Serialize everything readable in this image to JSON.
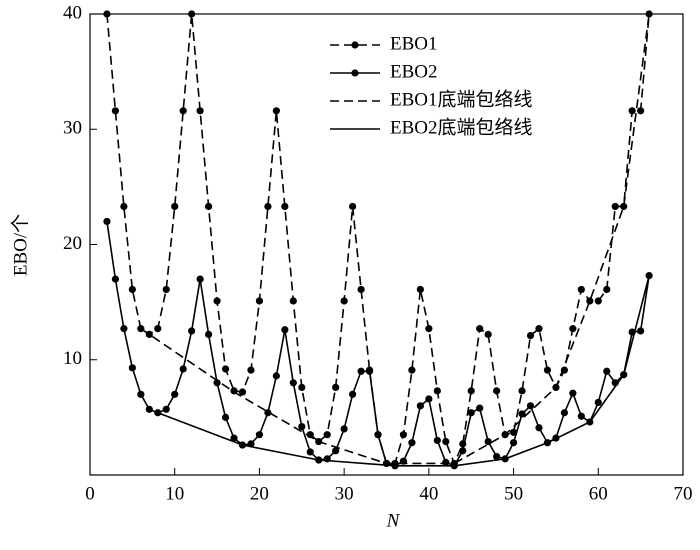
{
  "chart_data": {
    "type": "line",
    "x_label": "N",
    "y_label": "EBO/个",
    "x": [
      2,
      3,
      4,
      5,
      6,
      7,
      8,
      9,
      10,
      11,
      12,
      13,
      14,
      15,
      16,
      17,
      18,
      19,
      20,
      21,
      22,
      23,
      24,
      25,
      26,
      27,
      28,
      29,
      30,
      31,
      32,
      33,
      34,
      35,
      36,
      37,
      38,
      39,
      40,
      41,
      42,
      43,
      44,
      45,
      46,
      47,
      48,
      49,
      50,
      51,
      52,
      53,
      54,
      55,
      56,
      57,
      58,
      59,
      60,
      61,
      62,
      63,
      64,
      65,
      66
    ],
    "series": [
      {
        "name": "EBO1",
        "color": "#000000",
        "dashed": true,
        "markers": true,
        "values": [
          40,
          31.6,
          23.3,
          16.1,
          12.7,
          12.2,
          12.7,
          16.1,
          23.3,
          31.6,
          40,
          31.6,
          23.3,
          15.1,
          9.2,
          7.3,
          7.2,
          9.1,
          15.1,
          23.3,
          31.6,
          23.3,
          15.1,
          7.6,
          3.5,
          2.9,
          3.5,
          7.6,
          15.1,
          23.3,
          16.1,
          9.1,
          3.5,
          1,
          1,
          3.5,
          9.1,
          16.1,
          12.7,
          7.3,
          2.9,
          1,
          2.7,
          7.3,
          12.7,
          12.2,
          7.3,
          3.5,
          3.7,
          7.3,
          12.1,
          12.7,
          9.1,
          7.6,
          9.1,
          12.7,
          16.1,
          15.1,
          15.1,
          16.1,
          23.3,
          23.3,
          31.6,
          31.6,
          40
        ]
      },
      {
        "name": "EBO2",
        "color": "#000000",
        "dashed": false,
        "markers": true,
        "values": [
          22,
          17,
          12.7,
          9.3,
          7,
          5.7,
          5.4,
          5.7,
          7,
          9.2,
          12.5,
          17,
          12.2,
          8,
          5,
          3.2,
          2.6,
          2.7,
          3.5,
          5.4,
          8.6,
          12.6,
          8,
          4.2,
          2,
          1.3,
          1.4,
          2.1,
          4,
          7,
          9,
          9,
          3.5,
          1,
          0.8,
          1.2,
          2.8,
          6,
          6.6,
          3,
          1.1,
          0.8,
          2.1,
          5.4,
          5.8,
          2.9,
          1.6,
          1.4,
          2.8,
          5.3,
          6,
          4.1,
          2.8,
          3.2,
          5.4,
          7.1,
          5.1,
          4.6,
          6.3,
          9,
          8,
          8.7,
          12.4,
          12.5,
          17.3
        ]
      },
      {
        "name": "EBO1底端包络线",
        "color": "#000000",
        "dashed": true,
        "markers": false,
        "x": [
          6,
          7,
          17,
          27,
          35,
          43,
          49,
          55,
          59,
          63,
          66
        ],
        "values": [
          12.7,
          12.2,
          7.2,
          2.9,
          1,
          1,
          3.5,
          7.6,
          15.1,
          23.3,
          40
        ]
      },
      {
        "name": "EBO2底端包络线",
        "color": "#000000",
        "dashed": false,
        "markers": false,
        "x": [
          8,
          18,
          27,
          36,
          43,
          49,
          54,
          59,
          63,
          66
        ],
        "values": [
          5.4,
          2.6,
          1.3,
          0.8,
          0.8,
          1.4,
          2.8,
          4.6,
          8.7,
          17.3
        ]
      }
    ],
    "xlim": [
      0,
      70
    ],
    "xticks": [
      0,
      10,
      20,
      30,
      40,
      50,
      60,
      70
    ],
    "ylim": [
      0,
      40
    ],
    "yticks": [
      10,
      20,
      30,
      40
    ],
    "legend": "top"
  }
}
